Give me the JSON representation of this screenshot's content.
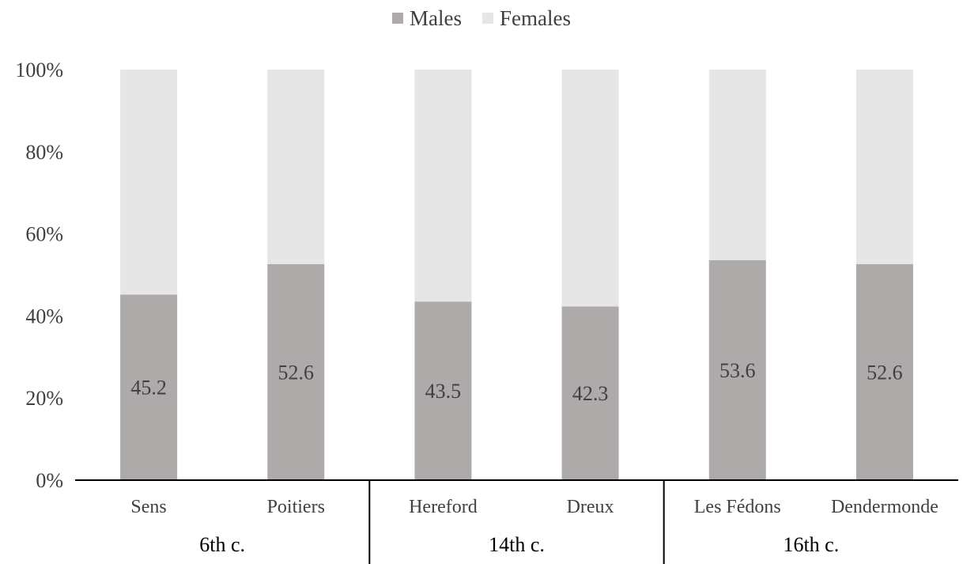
{
  "chart_data": {
    "type": "bar",
    "stacked": true,
    "percent": true,
    "title": "",
    "xlabel": "",
    "ylabel": "",
    "ylim": [
      0,
      100
    ],
    "yticks": [
      "0%",
      "20%",
      "40%",
      "60%",
      "80%",
      "100%"
    ],
    "categories": [
      "Sens",
      "Poitiers",
      "Hereford",
      "Dreux",
      "Les Fédons",
      "Dendermonde"
    ],
    "groups": [
      {
        "label": "6th c.",
        "categories": [
          "Sens",
          "Poitiers"
        ]
      },
      {
        "label": "14th c.",
        "categories": [
          "Hereford",
          "Dreux"
        ]
      },
      {
        "label": "16th c.",
        "categories": [
          "Les Fédons",
          "Dendermonde"
        ]
      }
    ],
    "series": [
      {
        "name": "Males",
        "values": [
          45.2,
          52.6,
          43.5,
          42.3,
          53.6,
          52.6
        ],
        "color": "#aeaaaa"
      },
      {
        "name": "Females",
        "values": [
          54.8,
          47.4,
          56.5,
          57.7,
          46.4,
          47.4
        ],
        "color": "#e7e6e6"
      }
    ],
    "data_labels": [
      "45.2",
      "52.6",
      "43.5",
      "42.3",
      "53.6",
      "52.6"
    ],
    "legend_position": "top-center",
    "grid": false
  }
}
